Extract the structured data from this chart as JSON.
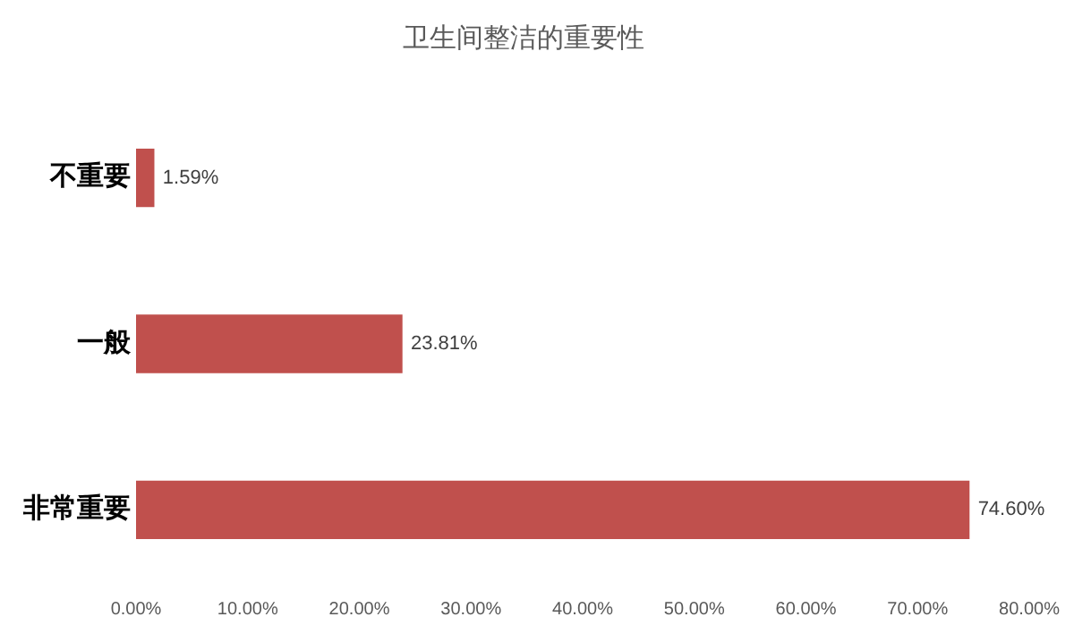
{
  "chart_data": {
    "type": "bar",
    "orientation": "horizontal",
    "title": "卫生间整洁的重要性",
    "categories": [
      "不重要",
      "一般",
      "非常重要"
    ],
    "values": [
      1.59,
      23.81,
      74.6
    ],
    "color": "#c0504d",
    "value_labels": [
      "1.59%",
      "23.81%",
      "74.60%"
    ],
    "xlim": [
      0,
      80
    ],
    "xticks": [
      {
        "value": 0,
        "label": "0.00%"
      },
      {
        "value": 10,
        "label": "10.00%"
      },
      {
        "value": 20,
        "label": "20.00%"
      },
      {
        "value": 30,
        "label": "30.00%"
      },
      {
        "value": 40,
        "label": "40.00%"
      },
      {
        "value": 50,
        "label": "50.00%"
      },
      {
        "value": 60,
        "label": "60.00%"
      },
      {
        "value": 70,
        "label": "70.00%"
      },
      {
        "value": 80,
        "label": "80.00%"
      }
    ],
    "grid": false,
    "legend": false
  }
}
